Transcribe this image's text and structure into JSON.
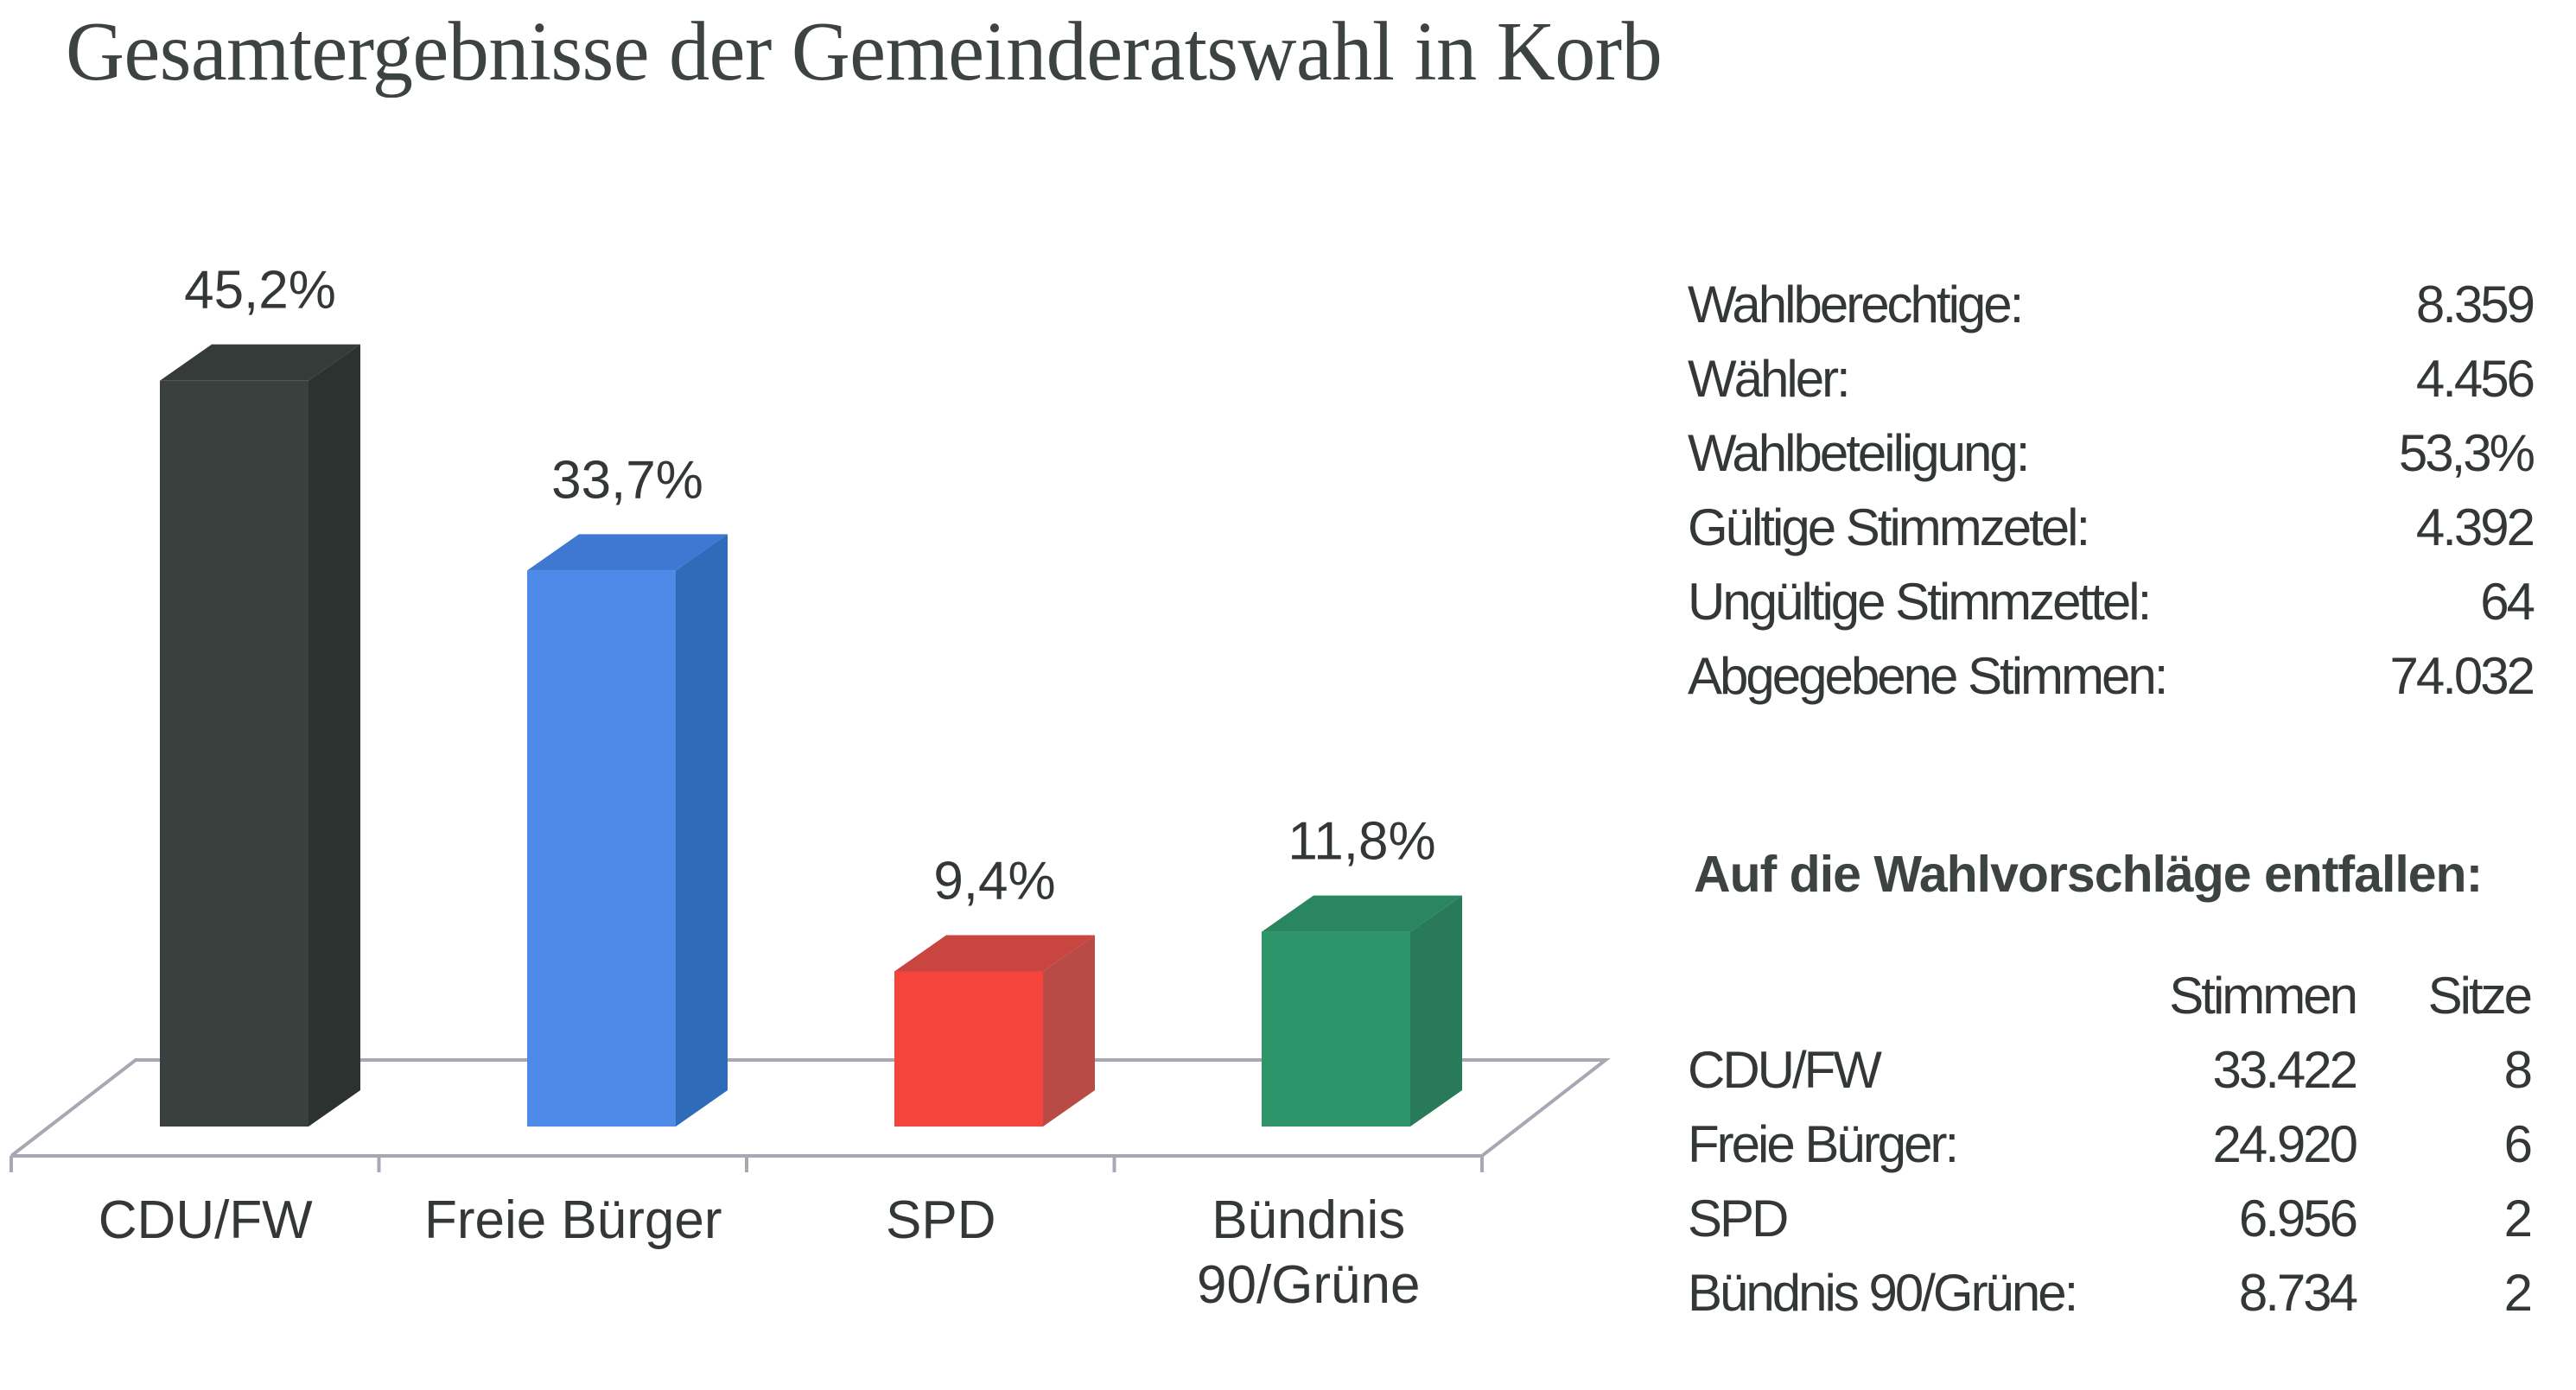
{
  "title": "Gesamtergebnisse der Gemeinderatswahl in Korb",
  "chart_data": {
    "type": "bar",
    "style": "3d-column",
    "title": "Gesamtergebnisse der Gemeinderatswahl in Korb",
    "categories": [
      "CDU/FW",
      "Freie Bürger",
      "SPD",
      "Bündnis 90/Grüne"
    ],
    "category_label_lines": [
      [
        "CDU/FW"
      ],
      [
        "Freie Bürger"
      ],
      [
        "SPD"
      ],
      [
        "Bündnis",
        "90/Grüne"
      ]
    ],
    "values": [
      45.2,
      33.7,
      9.4,
      11.8
    ],
    "value_labels": [
      "45,2%",
      "33,7%",
      "9,4%",
      "11,8%"
    ],
    "unit": "%",
    "colors": [
      {
        "front": "#3a403d",
        "side": "#2c322f",
        "top": "#353b38"
      },
      {
        "front": "#4e8ae8",
        "side": "#2f6bb8",
        "top": "#3e78d2"
      },
      {
        "front": "#f5443c",
        "side": "#b84b45",
        "top": "#c9453f"
      },
      {
        "front": "#2e9469",
        "side": "#287a5a",
        "top": "#2a865f"
      }
    ],
    "xlabel": "",
    "ylabel": "",
    "ylim": [
      0,
      50
    ],
    "grid": false,
    "legend": "none"
  },
  "stats": [
    {
      "label": "Wahlberechtige:",
      "value": "8.359"
    },
    {
      "label": "Wähler:",
      "value": "4.456"
    },
    {
      "label": "Wahlbeteiligung:",
      "value": "53,3%"
    },
    {
      "label": "Gültige Stimmzetel:",
      "value": "4.392"
    },
    {
      "label": "Ungültige Stimmzettel:",
      "value": "64"
    },
    {
      "label": "Abgegebene Stimmen:",
      "value": "74.032"
    }
  ],
  "allocation": {
    "heading": "Auf die Wahlvorschläge entfallen:",
    "columns": [
      "Stimmen",
      "Sitze"
    ],
    "rows": [
      {
        "party": "CDU/FW",
        "votes": "33.422",
        "seats": "8"
      },
      {
        "party": "Freie Bürger:",
        "votes": "24.920",
        "seats": "6"
      },
      {
        "party": "SPD",
        "votes": "6.956",
        "seats": "2"
      },
      {
        "party": "Bündnis 90/Grüne:",
        "votes": "8.734",
        "seats": "2"
      }
    ]
  }
}
